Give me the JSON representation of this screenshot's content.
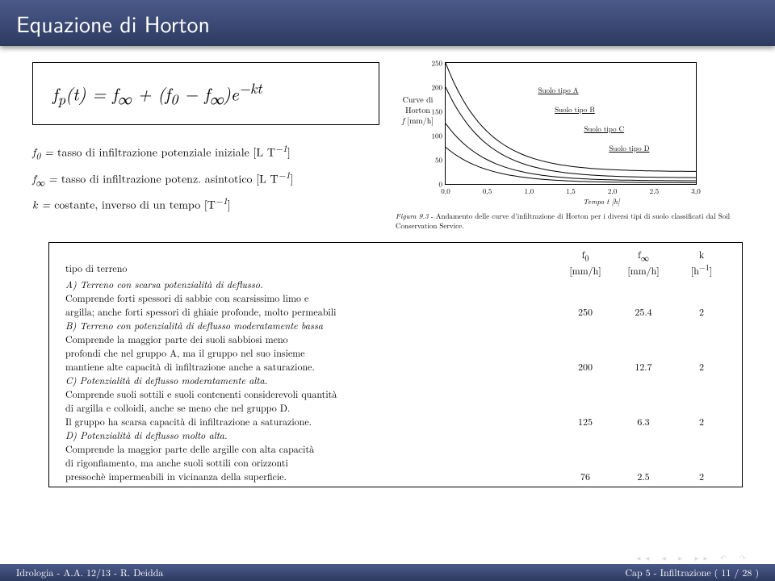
{
  "title": "Equazione di Horton",
  "formula": {
    "main_html": "f<sub>p</sub>(t) = f<sub>∞</sub> + (f<sub>0</sub> − f<sub>∞</sub>)e<sup>−kt</sup>",
    "defs": [
      "f<sub>0</sub> = <span class='rm'>tasso di infiltrazione potenziale iniziale [L T</span><sup>−1</sup><span class='rm'>]</span>",
      "f<sub>∞</sub> = <span class='rm'>tasso di infiltrazione potenz. asintotico [L T</span><sup>−1</sup><span class='rm'>]</span>",
      "k = <span class='rm'>costante, inverso di un tempo [T</span><sup>−1</sup><span class='rm'>]</span>"
    ]
  },
  "chart": {
    "ylabel_html": "Curve di Horton<br><i>f</i> [mm/h]",
    "xlabel": "Tempo t  [h]",
    "ylim": [
      0,
      250
    ],
    "xlim": [
      0,
      3.0
    ],
    "yticks": [
      0,
      50,
      100,
      150,
      200,
      250
    ],
    "xticks": [
      "0,0",
      "0,5",
      "1,0",
      "1,5",
      "2,0",
      "2,5",
      "3,0"
    ],
    "curves": [
      {
        "label": "Suolo tipo A",
        "label_x": 1.05,
        "label_y": 195,
        "k": 2,
        "f0": 250,
        "finf": 25.4
      },
      {
        "label": "Suolo tipo B",
        "label_x": 1.25,
        "label_y": 155,
        "k": 2,
        "f0": 200,
        "finf": 12.7
      },
      {
        "label": "Suolo tipo C",
        "label_x": 1.6,
        "label_y": 115,
        "k": 2,
        "f0": 125,
        "finf": 6.3
      },
      {
        "label": "Suolo tipo D",
        "label_x": 1.9,
        "label_y": 75,
        "k": 2,
        "f0": 76,
        "finf": 2.5
      }
    ],
    "caption_fignum": "Figura 9.3",
    "caption_text": "-   Andamento delle curve d'infiltrazione di Horton per i diversi tipi di suolo classificati dal Soil Conservation Service."
  },
  "table": {
    "header": {
      "tipo": "tipo di terreno",
      "f0_html": "f<sub>0</sub><br>[mm/h]",
      "finf_html": "f<sub>∞</sub><br>[mm/h]",
      "k_html": "k<br>[h<sup>−1</sup>]"
    },
    "rows": [
      {
        "desc_html": "<span class='hd'>A) Terreno con scarsa potenzialità di deflusso.</span><br>Comprende forti spessori di sabbie con scarsissimo limo e<br>argilla; anche forti spessori di ghiaie profonde, molto permeabili",
        "f0": "250",
        "finf": "25.4",
        "k": "2"
      },
      {
        "desc_html": "<span class='hd'>B) Terreno con potenzialità di deflusso moderatamente bassa</span><br>Comprende la maggior parte dei suoli sabbiosi meno<br>profondi che nel gruppo A, ma il gruppo nel suo insieme<br>mantiene alte capacità di infiltrazione anche a saturazione.",
        "f0": "200",
        "finf": "12.7",
        "k": "2"
      },
      {
        "desc_html": "<span class='hd'>C) Potenzialità di deflusso moderatamente alta.</span><br>Comprende suoli sottili e suoli contenenti considerevoli quantità<br>di argilla e colloidi, anche se meno che nel gruppo D.<br>Il gruppo ha scarsa capacità di infiltrazione a saturazione.",
        "f0": "125",
        "finf": "6.3",
        "k": "2"
      },
      {
        "desc_html": "<span class='hd'>D) Potenzialità di deflusso molto alta.</span><br>Comprende la maggior parte delle argille con alta capacità<br>di rigonfiamento, ma anche suoli sottili con orizzonti<br>pressochè impermeabili in vicinanza della superficie.",
        "f0": "76",
        "finf": "2.5",
        "k": "2"
      }
    ]
  },
  "footer": {
    "left": "Idrologia - A.A. 12/13 - R. Deidda",
    "right": "Cap 5 - Infiltrazione   ( 11 / 28 )"
  }
}
